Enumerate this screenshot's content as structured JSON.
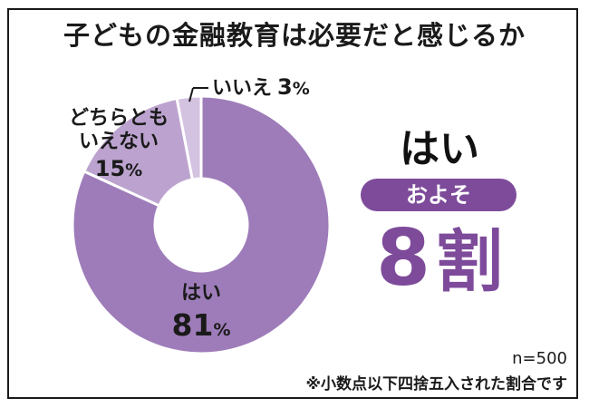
{
  "title": "子どもの金融教育は必要だと感じるか",
  "summary": {
    "answer": "はい",
    "pill": "およそ",
    "big_number": "8",
    "big_unit": "割"
  },
  "notes": {
    "sample_size": "n=500",
    "rounding": "※小数点以下四捨五入された割合です"
  },
  "colors": {
    "accent": "#7e4b9b",
    "slice_yes": "#9e7cb9",
    "slice_mid": "#bca3cf",
    "slice_no": "#d4c2e1"
  },
  "chart_data": {
    "type": "pie",
    "donut": true,
    "title": "子どもの金融教育は必要だと感じるか",
    "unit": "%",
    "slices": [
      {
        "label": "はい",
        "value": 81
      },
      {
        "label": "どちらともいえない",
        "value": 15,
        "label_lines": [
          "どちらとも",
          "いえない"
        ]
      },
      {
        "label": "いいえ",
        "value": 3
      }
    ]
  }
}
